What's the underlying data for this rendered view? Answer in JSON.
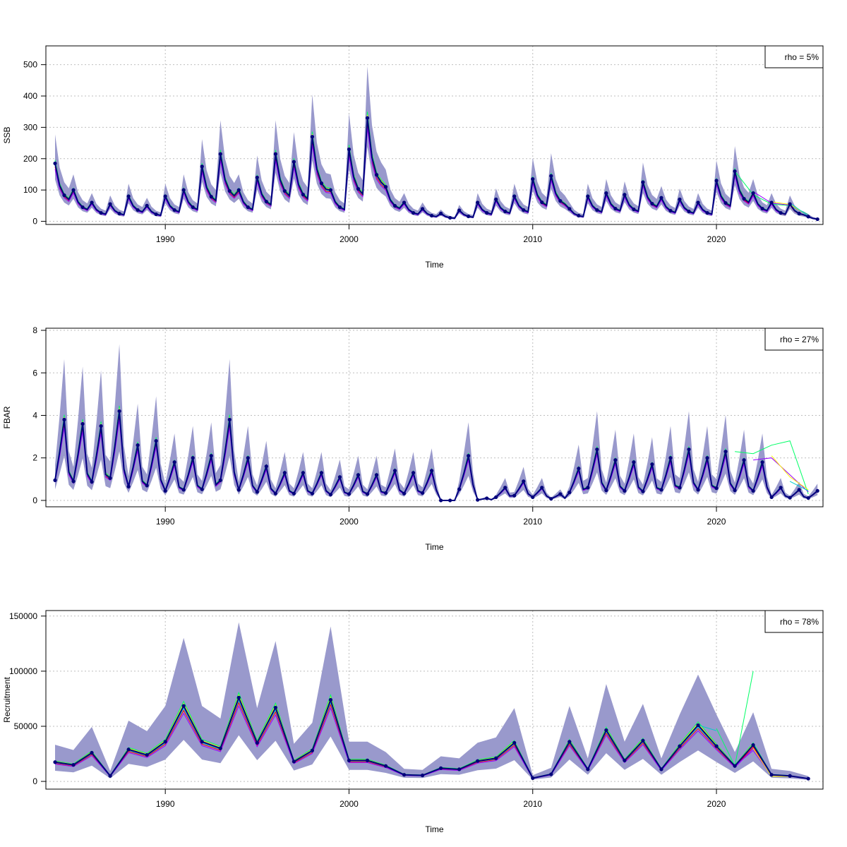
{
  "colors": {
    "band": "#9999cc",
    "grid": "#bebebe",
    "main": "#000080",
    "points": "#00007a",
    "retro": [
      "#ff0000",
      "#00ff66",
      "#9900ff",
      "#ffff00",
      "#00cccc",
      "#ff66aa"
    ]
  },
  "chart_data": [
    {
      "type": "line",
      "xlabel": "Time",
      "ylabel": "SSB",
      "legend": "rho = 5%",
      "legend_position": "top-right",
      "grid": true,
      "xlim": [
        1983.5,
        2025.8
      ],
      "ylim": [
        -10,
        560
      ],
      "xticks": [
        1990,
        2000,
        2010,
        2020
      ],
      "yticks": [
        0,
        100,
        200,
        300,
        400,
        500
      ],
      "band_scale": [
        0.72,
        1.5
      ],
      "x": [
        1984,
        1985,
        1986,
        1987,
        1988,
        1989,
        1990,
        1991,
        1992,
        1993,
        1994,
        1995,
        1996,
        1997,
        1998,
        1999,
        2000,
        2001,
        2002,
        2003,
        2004,
        2005,
        2006,
        2007,
        2008,
        2009,
        2010,
        2011,
        2012,
        2013,
        2014,
        2015,
        2016,
        2017,
        2018,
        2019,
        2020,
        2021,
        2022,
        2023,
        2024,
        2025
      ],
      "values": [
        185,
        100,
        60,
        55,
        80,
        50,
        80,
        100,
        175,
        215,
        100,
        140,
        215,
        190,
        270,
        100,
        230,
        330,
        110,
        60,
        40,
        25,
        35,
        60,
        70,
        80,
        135,
        145,
        40,
        80,
        90,
        85,
        125,
        75,
        70,
        60,
        130,
        160,
        90,
        60,
        55,
        15
      ],
      "retro_divergence": [
        {
          "start": 2021,
          "values": [
            160,
            85,
            55,
            50,
            22
          ]
        },
        {
          "start": 2022,
          "values": [
            95,
            58,
            52,
            20
          ]
        },
        {
          "start": 2023,
          "values": [
            62,
            54,
            18
          ]
        },
        {
          "start": 2024,
          "values": [
            58,
            17
          ]
        }
      ]
    },
    {
      "type": "line",
      "xlabel": "Time",
      "ylabel": "FBAR",
      "legend": "rho = 27%",
      "legend_position": "top-right",
      "grid": true,
      "xlim": [
        1983.5,
        2025.8
      ],
      "ylim": [
        -0.3,
        8.1
      ],
      "xticks": [
        1990,
        2000,
        2010,
        2020
      ],
      "yticks": [
        0,
        2,
        4,
        6,
        8
      ],
      "band_scale": [
        0.55,
        1.75
      ],
      "x": [
        1984,
        1985,
        1986,
        1987,
        1988,
        1989,
        1990,
        1991,
        1992,
        1993,
        1994,
        1995,
        1996,
        1997,
        1998,
        1999,
        2000,
        2001,
        2002,
        2003,
        2004,
        2005,
        2006,
        2007,
        2008,
        2009,
        2010,
        2011,
        2012,
        2013,
        2014,
        2015,
        2016,
        2017,
        2018,
        2019,
        2020,
        2021,
        2022,
        2023,
        2024,
        2025
      ],
      "values": [
        3.8,
        3.6,
        3.5,
        4.2,
        2.6,
        2.8,
        1.8,
        2.0,
        2.1,
        3.8,
        2.0,
        1.6,
        1.3,
        1.3,
        1.3,
        1.1,
        1.2,
        1.2,
        1.4,
        1.3,
        1.4,
        0.0,
        2.1,
        0.1,
        0.6,
        0.9,
        0.6,
        0.3,
        1.5,
        2.4,
        1.9,
        1.8,
        1.7,
        2.0,
        2.4,
        2.0,
        2.3,
        1.9,
        1.8,
        0.6,
        0.5,
        0.45
      ],
      "retro_divergence": [
        {
          "start": 2021,
          "values": [
            2.3,
            2.2,
            2.6,
            2.8,
            0.3
          ]
        },
        {
          "start": 2022,
          "values": [
            1.9,
            2.0,
            1.2,
            0.4
          ]
        },
        {
          "start": 2023,
          "values": [
            2.1,
            1.1,
            0.5
          ]
        },
        {
          "start": 2024,
          "values": [
            0.9,
            0.45
          ]
        }
      ]
    },
    {
      "type": "line",
      "xlabel": "Time",
      "ylabel": "Recruitment",
      "legend": "rho = 78%",
      "legend_position": "top-right",
      "grid": true,
      "xlim": [
        1983.5,
        2025.8
      ],
      "ylim": [
        -7000,
        155000
      ],
      "xticks": [
        1990,
        2000,
        2010,
        2020
      ],
      "yticks": [
        0,
        50000,
        100000,
        150000
      ],
      "band_scale": [
        0.55,
        1.9
      ],
      "x": [
        1984,
        1985,
        1986,
        1987,
        1988,
        1989,
        1990,
        1991,
        1992,
        1993,
        1994,
        1995,
        1996,
        1997,
        1998,
        1999,
        2000,
        2001,
        2002,
        2003,
        2004,
        2005,
        2006,
        2007,
        2008,
        2009,
        2010,
        2011,
        2012,
        2013,
        2014,
        2015,
        2016,
        2017,
        2018,
        2019,
        2020,
        2021,
        2022,
        2023,
        2024,
        2025
      ],
      "values": [
        17500,
        15000,
        26000,
        5000,
        29000,
        24000,
        36000,
        68500,
        36000,
        30000,
        76000,
        35000,
        67000,
        18000,
        28000,
        74000,
        19000,
        19000,
        14000,
        6000,
        5500,
        12000,
        11000,
        18500,
        21000,
        35000,
        3000,
        6500,
        36000,
        11000,
        46500,
        19000,
        37000,
        11000,
        32000,
        51000,
        32000,
        14000,
        33000,
        6000,
        5000,
        2500
      ],
      "retro_divergence": [
        {
          "start": 2020,
          "values": [
            48000,
            14000,
            100000
          ]
        },
        {
          "start": 2021,
          "values": [
            14000,
            28000,
            5000
          ]
        },
        {
          "start": 2022,
          "values": [
            30000,
            4500,
            4500
          ]
        },
        {
          "start": 2019,
          "values": [
            51000,
            46000
          ]
        }
      ]
    }
  ]
}
